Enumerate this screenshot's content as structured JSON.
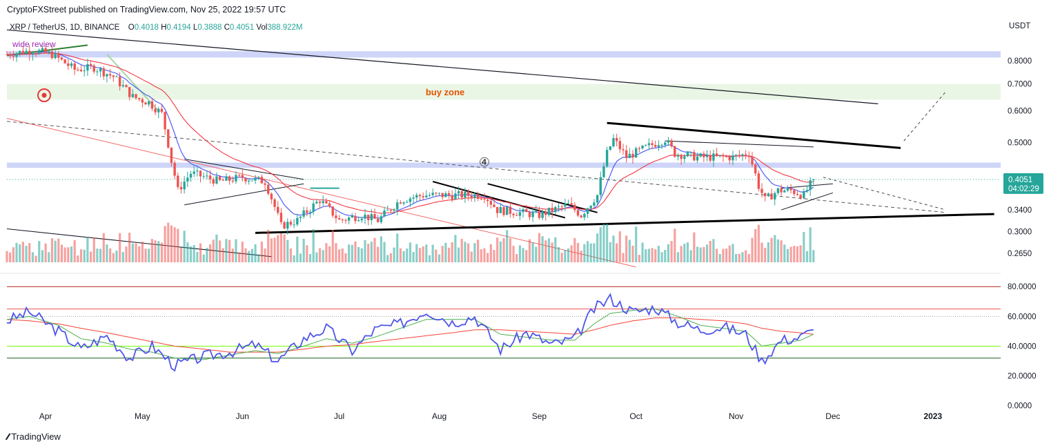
{
  "header": {
    "publisher": "CryptoFXStreet published on TradingView.com, Nov 25, 2022 19:57 UTC",
    "symbol": "XRP / TetherUS, 1D, BINANCE",
    "o_label": "O",
    "o_value": "0.4018",
    "h_label": "H",
    "h_value": "0.4194",
    "l_label": "L",
    "l_value": "0.3888",
    "c_label": "C",
    "c_value": "0.4051",
    "vol_label": "Vol",
    "vol_value": "388.922M",
    "currency": "USDT"
  },
  "footer": {
    "logo_text": "TradingView"
  },
  "colors": {
    "up": "#26a69a",
    "down": "#ef5350",
    "ema_fast": "#3f51f5",
    "ema_slow": "#f23645",
    "rsi": "#4d55e8",
    "rsi_ma_fast": "#4caf50",
    "rsi_ma_slow": "#f44336"
  },
  "chart_data": [
    {
      "type": "candlestick",
      "y_scale": "log",
      "ylim": [
        0.24,
        0.93
      ],
      "x_range": [
        "2022-03-20",
        "2023-01-22"
      ],
      "x_ticks": [
        {
          "date": "2022-04-01",
          "label": "Apr"
        },
        {
          "date": "2022-05-01",
          "label": "May"
        },
        {
          "date": "2022-06-01",
          "label": "Jun"
        },
        {
          "date": "2022-07-01",
          "label": "Jul"
        },
        {
          "date": "2022-08-01",
          "label": "Aug"
        },
        {
          "date": "2022-09-01",
          "label": "Sep"
        },
        {
          "date": "2022-10-01",
          "label": "Oct"
        },
        {
          "date": "2022-11-01",
          "label": "Nov"
        },
        {
          "date": "2022-12-01",
          "label": "Dec"
        },
        {
          "date": "2023-01-01",
          "label": "2023"
        }
      ],
      "y_ticks": [
        {
          "value": 0.8,
          "label": "0.8000"
        },
        {
          "value": 0.7,
          "label": "0.7000"
        },
        {
          "value": 0.6,
          "label": "0.6000"
        },
        {
          "value": 0.5,
          "label": "0.5000"
        },
        {
          "value": 0.34,
          "label": "0.3400"
        },
        {
          "value": 0.3,
          "label": "0.3000"
        },
        {
          "value": 0.265,
          "label": "0.2650"
        }
      ],
      "last_price": {
        "value": 0.4051,
        "label": "0.4051",
        "countdown": "04:02:29"
      },
      "zones": [
        {
          "label": "",
          "from": 0.815,
          "to": 0.845,
          "color": "#c5cef7"
        },
        {
          "label": "buy zone",
          "from": 0.64,
          "to": 0.7,
          "color": "#e6f4e1"
        },
        {
          "label": "",
          "from": 0.433,
          "to": 0.446,
          "color": "#c5cef7"
        }
      ],
      "annotations": [
        "wide review",
        "④"
      ],
      "price_path": [
        [
          "2022-03-20",
          0.83
        ],
        [
          "2022-03-28",
          0.85
        ],
        [
          "2022-04-03",
          0.83
        ],
        [
          "2022-04-10",
          0.76
        ],
        [
          "2022-04-16",
          0.77
        ],
        [
          "2022-04-22",
          0.73
        ],
        [
          "2022-04-28",
          0.65
        ],
        [
          "2022-05-03",
          0.63
        ],
        [
          "2022-05-07",
          0.59
        ],
        [
          "2022-05-10",
          0.45
        ],
        [
          "2022-05-12",
          0.38
        ],
        [
          "2022-05-16",
          0.42
        ],
        [
          "2022-05-25",
          0.4
        ],
        [
          "2022-06-01",
          0.41
        ],
        [
          "2022-06-08",
          0.4
        ],
        [
          "2022-06-13",
          0.31
        ],
        [
          "2022-06-18",
          0.32
        ],
        [
          "2022-06-25",
          0.36
        ],
        [
          "2022-07-01",
          0.32
        ],
        [
          "2022-07-08",
          0.33
        ],
        [
          "2022-07-13",
          0.32
        ],
        [
          "2022-07-20",
          0.36
        ],
        [
          "2022-07-27",
          0.37
        ],
        [
          "2022-08-03",
          0.37
        ],
        [
          "2022-08-15",
          0.37
        ],
        [
          "2022-08-19",
          0.34
        ],
        [
          "2022-09-01",
          0.33
        ],
        [
          "2022-09-10",
          0.35
        ],
        [
          "2022-09-14",
          0.33
        ],
        [
          "2022-09-19",
          0.37
        ],
        [
          "2022-09-22",
          0.47
        ],
        [
          "2022-09-24",
          0.51
        ],
        [
          "2022-09-28",
          0.46
        ],
        [
          "2022-10-05",
          0.49
        ],
        [
          "2022-10-10",
          0.51
        ],
        [
          "2022-10-13",
          0.47
        ],
        [
          "2022-10-20",
          0.46
        ],
        [
          "2022-10-31",
          0.46
        ],
        [
          "2022-11-05",
          0.47
        ],
        [
          "2022-11-08",
          0.39
        ],
        [
          "2022-11-10",
          0.36
        ],
        [
          "2022-11-14",
          0.38
        ],
        [
          "2022-11-18",
          0.38
        ],
        [
          "2022-11-22",
          0.37
        ],
        [
          "2022-11-25",
          0.4051
        ]
      ]
    },
    {
      "type": "line",
      "name": "",
      "ylim": [
        0,
        80
      ],
      "y_ticks": [
        {
          "value": 80,
          "label": "80.0000"
        },
        {
          "value": 60,
          "label": "60.0000"
        },
        {
          "value": 40,
          "label": "40.0000"
        },
        {
          "value": 20,
          "label": "20.0000"
        },
        {
          "value": 0,
          "label": "0.0000"
        }
      ],
      "levels": [
        80,
        65,
        60,
        40,
        32
      ],
      "x": [
        "2022-03-20",
        "2022-03-27",
        "2022-04-05",
        "2022-04-12",
        "2022-04-20",
        "2022-04-27",
        "2022-05-04",
        "2022-05-11",
        "2022-05-20",
        "2022-05-28",
        "2022-06-05",
        "2022-06-12",
        "2022-06-20",
        "2022-06-27",
        "2022-07-05",
        "2022-07-12",
        "2022-07-20",
        "2022-07-28",
        "2022-08-05",
        "2022-08-12",
        "2022-08-20",
        "2022-08-28",
        "2022-09-05",
        "2022-09-12",
        "2022-09-18",
        "2022-09-23",
        "2022-09-30",
        "2022-10-07",
        "2022-10-14",
        "2022-10-21",
        "2022-10-28",
        "2022-11-04",
        "2022-11-09",
        "2022-11-15",
        "2022-11-21",
        "2022-11-25"
      ],
      "values": [
        57,
        63,
        50,
        38,
        47,
        32,
        40,
        27,
        33,
        36,
        41,
        30,
        45,
        52,
        37,
        51,
        55,
        64,
        56,
        60,
        38,
        49,
        41,
        45,
        65,
        72,
        63,
        66,
        56,
        51,
        53,
        48,
        30,
        44,
        46,
        51
      ],
      "ma_fast": [
        58,
        60,
        54,
        45,
        42,
        38,
        36,
        32,
        31,
        34,
        37,
        35,
        40,
        45,
        42,
        46,
        52,
        58,
        58,
        58,
        48,
        46,
        44,
        44,
        55,
        62,
        64,
        65,
        60,
        54,
        52,
        50,
        40,
        42,
        44,
        48
      ],
      "ma_slow": [
        58,
        57,
        55,
        52,
        49,
        46,
        43,
        40,
        38,
        36,
        36,
        36,
        38,
        40,
        41,
        43,
        45,
        47,
        49,
        51,
        51,
        50,
        49,
        48,
        51,
        54,
        57,
        59,
        59,
        58,
        57,
        55,
        52,
        50,
        49,
        48
      ]
    }
  ]
}
